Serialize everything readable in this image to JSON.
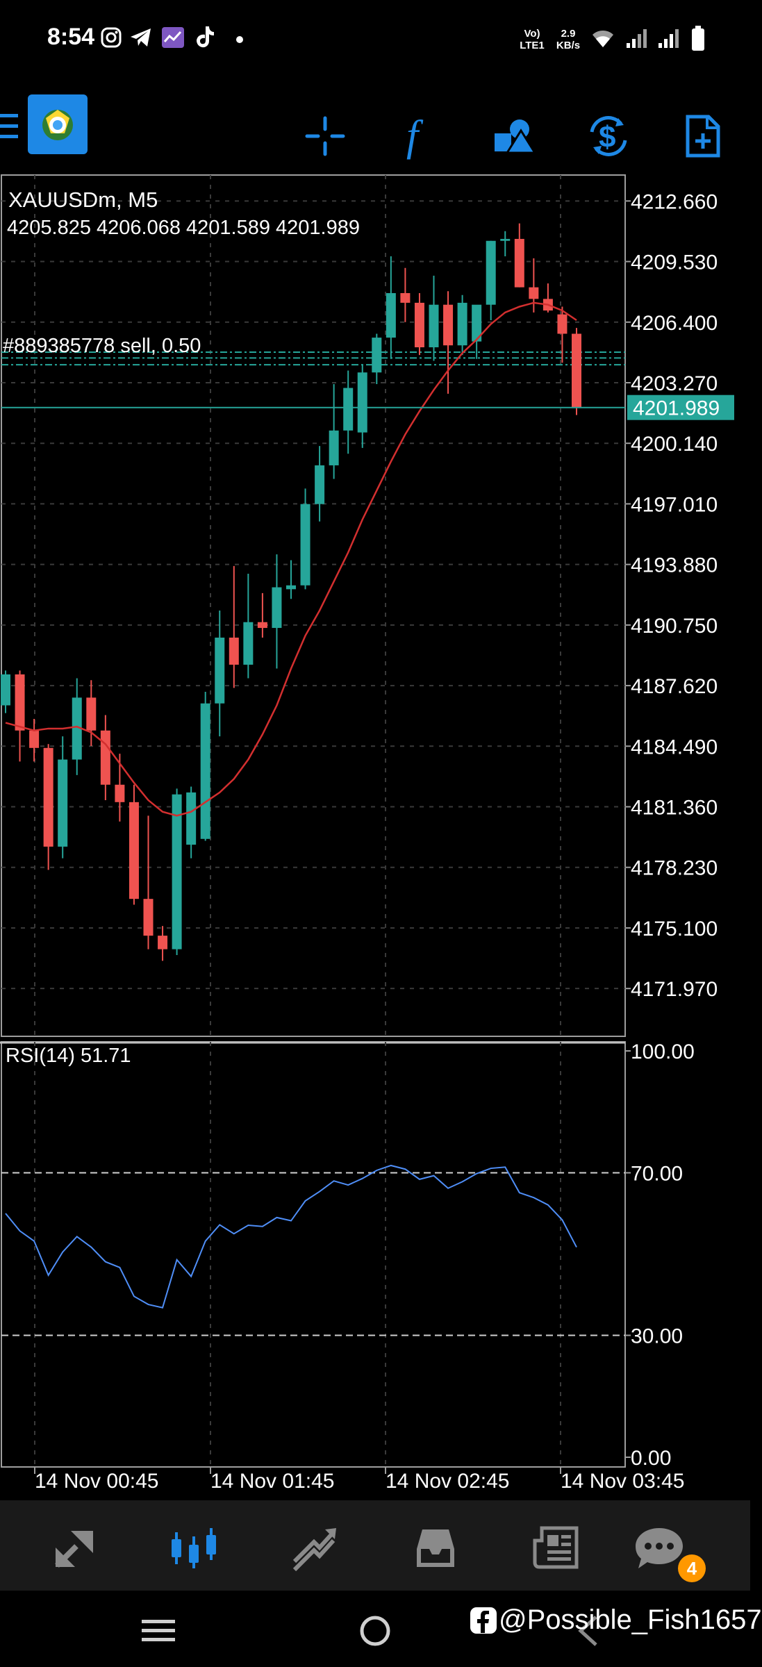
{
  "status_bar": {
    "time": "8:54",
    "network": "Vo) LTE1",
    "speed": "2.9 KB/s"
  },
  "toolbar": {
    "menu_icon": "menu-icon",
    "logo_icon": "metatrader-logo",
    "items": [
      {
        "icon": "crosshair-icon"
      },
      {
        "icon": "indicator-f-icon"
      },
      {
        "icon": "objects-icon"
      },
      {
        "icon": "currency-exchange-icon"
      },
      {
        "icon": "new-document-icon"
      }
    ],
    "accent": "#1e88e5"
  },
  "chart_header": {
    "symbol": "XAUUSDm, M5",
    "ohlc": "4205.825 4206.068 4201.589 4201.989",
    "order_label": "#889385778 sell, 0.50",
    "current_price": "4201.989"
  },
  "colors": {
    "bull": "#26a69a",
    "bear": "#ef5350",
    "ma": "#d32f2f",
    "rsi": "#4f8ef7",
    "current_line": "#26a69a"
  },
  "chart_data": [
    {
      "type": "candlestick",
      "title": "XAUUSDm, M5",
      "y_ticks": [
        "4212.660",
        "4209.530",
        "4206.400",
        "4203.270",
        "4200.140",
        "4197.010",
        "4193.880",
        "4190.750",
        "4187.620",
        "4184.490",
        "4181.360",
        "4178.230",
        "4175.100",
        "4171.970"
      ],
      "ylim": [
        4169.5,
        4214.0
      ],
      "x_ticks": [
        "14 Nov 00:45",
        "14 Nov 01:45",
        "14 Nov 02:45",
        "14 Nov 03:45"
      ],
      "candles": [
        [
          4186.6,
          4188.4,
          4186.2,
          4188.2
        ],
        [
          4188.2,
          4188.4,
          4183.7,
          4185.3
        ],
        [
          4185.3,
          4185.9,
          4183.7,
          4184.4
        ],
        [
          4184.4,
          4184.6,
          4178.1,
          4179.3
        ],
        [
          4179.3,
          4185.0,
          4178.7,
          4183.8
        ],
        [
          4183.8,
          4188.0,
          4183.0,
          4187.0
        ],
        [
          4187.0,
          4187.9,
          4184.5,
          4185.3
        ],
        [
          4185.3,
          4186.1,
          4181.7,
          4182.5
        ],
        [
          4182.5,
          4184.1,
          4180.6,
          4181.6
        ],
        [
          4181.6,
          4182.5,
          4176.3,
          4176.6
        ],
        [
          4176.6,
          4180.9,
          4174.0,
          4174.7
        ],
        [
          4174.7,
          4175.2,
          4173.4,
          4174.0
        ],
        [
          4174.0,
          4182.3,
          4173.7,
          4182.0
        ],
        [
          4179.4,
          4182.4,
          4178.7,
          4182.1
        ],
        [
          4179.7,
          4187.3,
          4179.6,
          4186.7
        ],
        [
          4186.7,
          4191.5,
          4185.0,
          4190.1
        ],
        [
          4190.1,
          4193.8,
          4187.5,
          4188.7
        ],
        [
          4188.7,
          4193.4,
          4188.0,
          4190.9
        ],
        [
          4190.9,
          4192.4,
          4190.1,
          4190.6
        ],
        [
          4190.6,
          4194.4,
          4188.5,
          4192.7
        ],
        [
          4192.6,
          4194.1,
          4192.1,
          4192.8
        ],
        [
          4192.8,
          4197.8,
          4192.6,
          4197.0
        ],
        [
          4197.0,
          4200.0,
          4196.1,
          4199.0
        ],
        [
          4199.0,
          4203.2,
          4198.3,
          4200.8
        ],
        [
          4200.8,
          4203.9,
          4199.6,
          4203.0
        ],
        [
          4200.7,
          4204.2,
          4199.9,
          4203.8
        ],
        [
          4203.8,
          4205.8,
          4203.2,
          4205.6
        ],
        [
          4205.6,
          4209.8,
          4204.5,
          4207.9
        ],
        [
          4207.9,
          4209.2,
          4206.4,
          4207.4
        ],
        [
          4207.4,
          4207.9,
          4204.7,
          4205.1
        ],
        [
          4205.1,
          4208.8,
          4204.4,
          4207.3
        ],
        [
          4207.3,
          4208.0,
          4202.7,
          4205.2
        ],
        [
          4205.2,
          4207.8,
          4204.7,
          4207.4
        ],
        [
          4205.4,
          4207.1,
          4204.5,
          4207.3
        ],
        [
          4207.3,
          4210.6,
          4206.5,
          4210.6
        ],
        [
          4210.6,
          4211.1,
          4209.8,
          4210.7
        ],
        [
          4210.7,
          4211.5,
          4208.2,
          4208.2
        ],
        [
          4208.2,
          4209.7,
          4206.9,
          4207.6
        ],
        [
          4207.6,
          4208.4,
          4206.9,
          4207.0
        ],
        [
          4206.8,
          4207.2,
          4204.3,
          4205.8
        ],
        [
          4205.8,
          4206.1,
          4201.6,
          4202.0
        ]
      ],
      "ma_series": [
        4185.7,
        4185.5,
        4185.3,
        4185.4,
        4185.4,
        4185.5,
        4185.2,
        4184.6,
        4183.6,
        4182.6,
        4181.7,
        4181.1,
        4180.9,
        4181.1,
        4181.6,
        4182.1,
        4182.8,
        4183.8,
        4185.1,
        4186.6,
        4188.5,
        4190.2,
        4191.5,
        4193.0,
        4194.5,
        4196.2,
        4197.7,
        4199.2,
        4200.6,
        4201.8,
        4202.9,
        4203.9,
        4204.8,
        4205.5,
        4206.3,
        4206.9,
        4207.2,
        4207.4,
        4207.3,
        4207.0,
        4206.5
      ],
      "current_price": 4201.989,
      "order_levels": [
        4204.2,
        4204.55,
        4204.85
      ]
    },
    {
      "type": "line",
      "title": "RSI(14) 51.71",
      "y_ticks": [
        "100.00",
        "70.00",
        "30.00",
        "0.00"
      ],
      "ylim": [
        0,
        100
      ],
      "levels": [
        70,
        30
      ],
      "series": [
        {
          "values": [
            60.0,
            55.7,
            53.2,
            44.8,
            50.5,
            54.3,
            51.7,
            48.1,
            46.7,
            39.6,
            37.6,
            36.8,
            48.6,
            44.5,
            53.2,
            57.2,
            55.0,
            57.1,
            56.8,
            59.0,
            58.2,
            63.1,
            65.4,
            68.0,
            67.0,
            68.6,
            70.6,
            71.8,
            70.9,
            68.4,
            69.3,
            66.2,
            67.8,
            69.8,
            71.1,
            71.4,
            65.1,
            63.9,
            62.1,
            58.4,
            51.7
          ]
        }
      ]
    }
  ],
  "bottom_nav": {
    "items": [
      {
        "icon": "quotes-icon"
      },
      {
        "icon": "chart-icon"
      },
      {
        "icon": "trade-icon"
      },
      {
        "icon": "history-icon"
      },
      {
        "icon": "news-icon"
      },
      {
        "icon": "chat-icon",
        "badge": "4"
      }
    ],
    "active_index": 1
  },
  "watermark": "@Possible_Fish1657"
}
